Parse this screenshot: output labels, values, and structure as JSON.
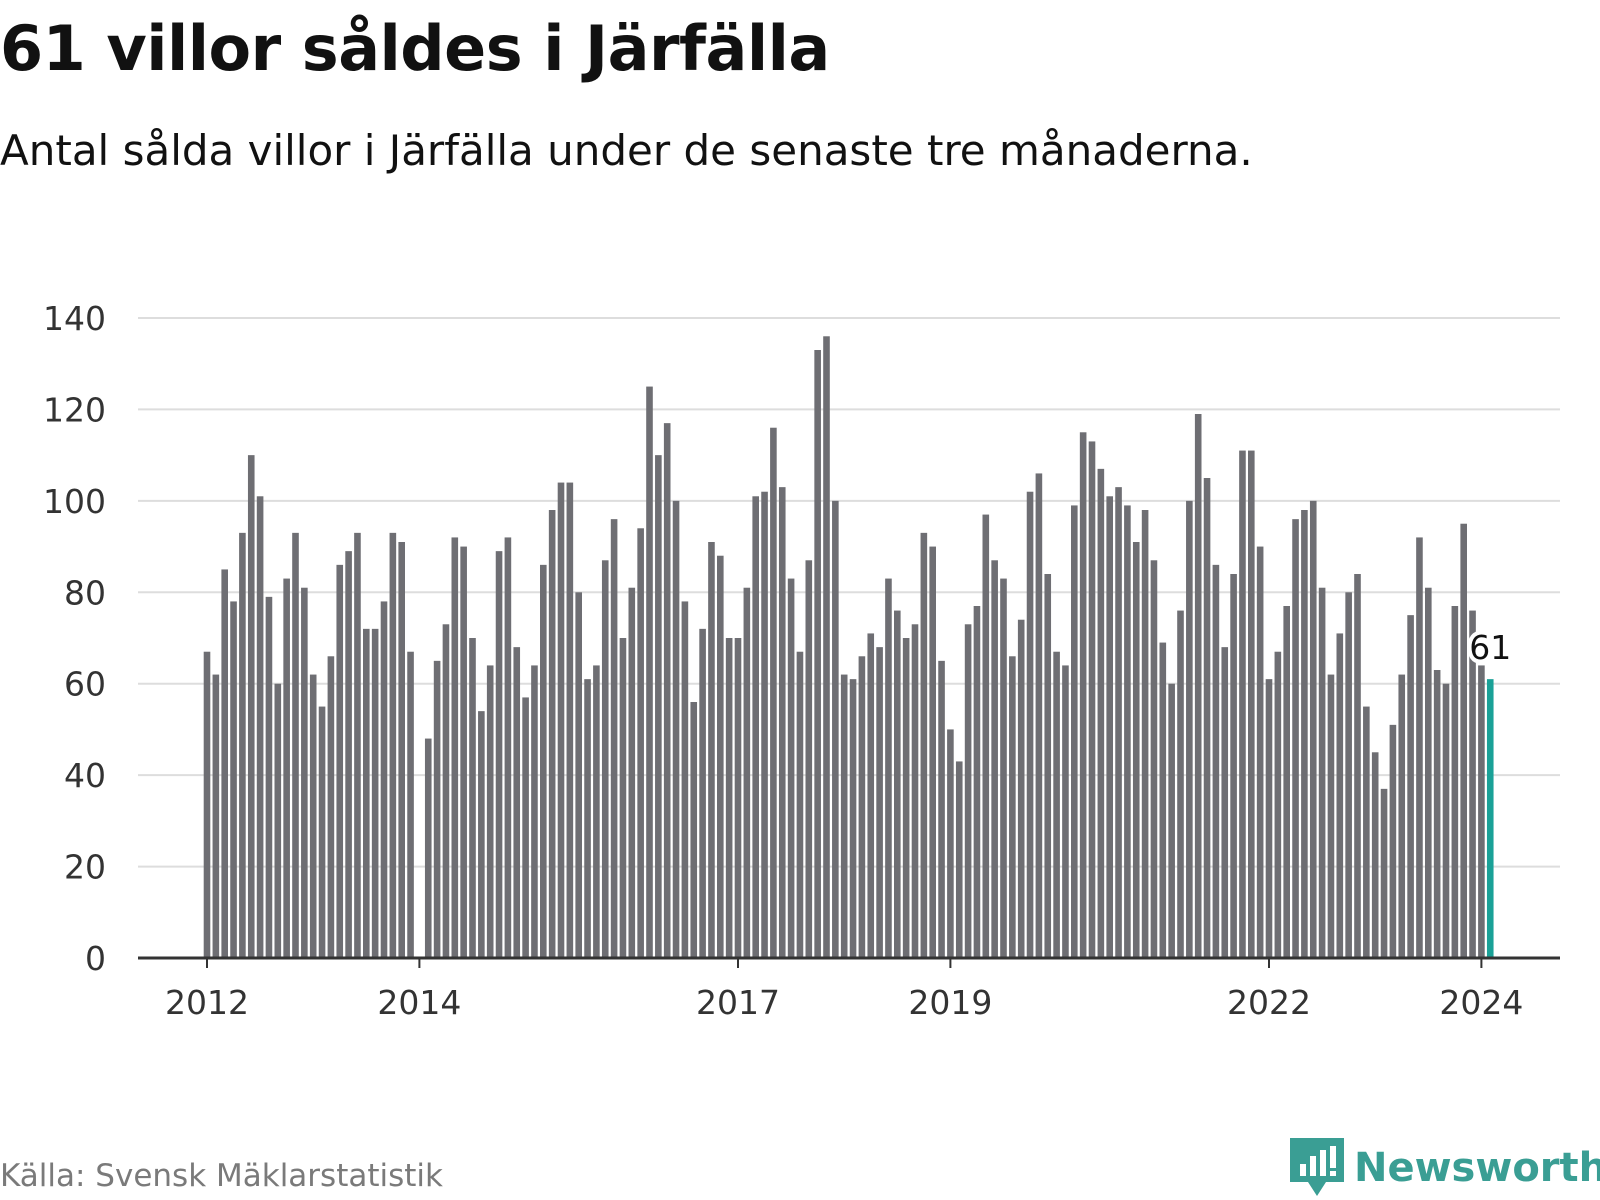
{
  "header": {
    "title": "61 villor såldes i Järfälla",
    "subtitle": "Antal sålda villor i Järfälla under de senaste tre månaderna."
  },
  "footer": {
    "source": "Källa: Svensk Mäklarstatistik",
    "brand": "Newsworthy"
  },
  "colors": {
    "bar": "#6e6e73",
    "highlight": "#1aa197",
    "grid": "#dddddd",
    "axis": "#333333",
    "text": "#333333",
    "brand": "#3a9e94"
  },
  "chart_data": {
    "type": "bar",
    "title": "61 villor såldes i Järfälla",
    "xlabel": "",
    "ylabel": "",
    "ylim": [
      0,
      140
    ],
    "grid": true,
    "yticks": [
      0,
      20,
      40,
      60,
      80,
      100,
      120,
      140
    ],
    "xticks": [
      {
        "label": "2012",
        "index": 0
      },
      {
        "label": "2014",
        "index": 24
      },
      {
        "label": "2017",
        "index": 60
      },
      {
        "label": "2019",
        "index": 84
      },
      {
        "label": "2022",
        "index": 120
      },
      {
        "label": "2024",
        "index": 144
      }
    ],
    "values": [
      67,
      62,
      85,
      78,
      93,
      110,
      101,
      79,
      60,
      83,
      93,
      81,
      62,
      55,
      66,
      86,
      89,
      93,
      72,
      72,
      78,
      93,
      91,
      67,
      0,
      48,
      65,
      73,
      92,
      90,
      70,
      54,
      64,
      89,
      92,
      68,
      57,
      64,
      86,
      98,
      104,
      104,
      80,
      61,
      64,
      87,
      96,
      70,
      81,
      94,
      125,
      110,
      117,
      100,
      78,
      56,
      72,
      91,
      88,
      70,
      70,
      81,
      101,
      102,
      116,
      103,
      83,
      67,
      87,
      133,
      136,
      100,
      62,
      61,
      66,
      71,
      68,
      83,
      76,
      70,
      73,
      93,
      90,
      65,
      50,
      43,
      73,
      77,
      97,
      87,
      83,
      66,
      74,
      102,
      106,
      84,
      67,
      64,
      99,
      115,
      113,
      107,
      101,
      103,
      99,
      91,
      98,
      87,
      69,
      60,
      76,
      100,
      119,
      105,
      86,
      68,
      84,
      111,
      111,
      90,
      61,
      67,
      77,
      96,
      98,
      100,
      81,
      62,
      71,
      80,
      84,
      55,
      45,
      37,
      51,
      62,
      75,
      92,
      81,
      63,
      60,
      77,
      95,
      76,
      64,
      61
    ],
    "highlight_index": 145,
    "highlight_label": "61"
  }
}
